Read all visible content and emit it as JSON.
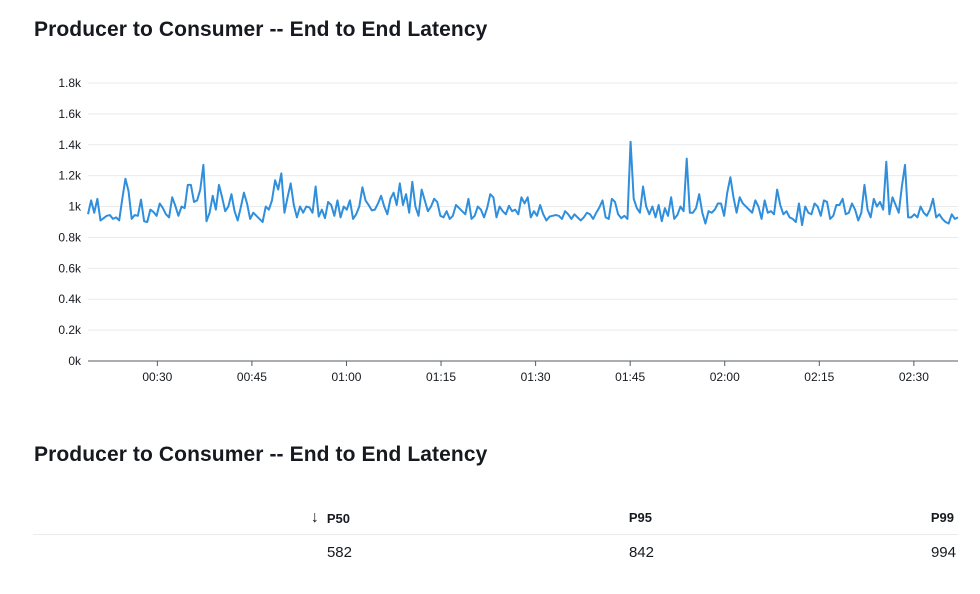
{
  "widgets": [
    {
      "title": "Producer to Consumer -- End to End Latency"
    },
    {
      "title": "Producer to Consumer -- End to End Latency"
    }
  ],
  "colors": {
    "line": "#2f8fdc",
    "grid": "#e9ebed",
    "axis": "#545b64",
    "text": "#16191f"
  },
  "chart_data": {
    "type": "line",
    "title": "Producer to Consumer -- End to End Latency",
    "xlabel": "",
    "ylabel": "",
    "x_tick_labels": [
      "00:30",
      "00:45",
      "01:00",
      "01:15",
      "01:30",
      "01:45",
      "02:00",
      "02:15",
      "02:30"
    ],
    "x_range": [
      "00:19",
      "02:37"
    ],
    "y_tick_labels": [
      "0k",
      "0.2k",
      "0.4k",
      "0.6k",
      "0.8k",
      "1k",
      "1.2k",
      "1.4k",
      "1.6k",
      "1.8k"
    ],
    "ylim": [
      0,
      1800
    ],
    "grid": true,
    "legend": "none",
    "series": [
      {
        "values": [
          950,
          1040,
          960,
          1050,
          910,
          925,
          940,
          945,
          920,
          930,
          910,
          1050,
          1180,
          1100,
          920,
          945,
          940,
          1045,
          905,
          900,
          980,
          965,
          940,
          1020,
          990,
          950,
          930,
          1060,
          1005,
          940,
          1000,
          990,
          1140,
          1140,
          1030,
          1040,
          1110,
          1270,
          905,
          960,
          1070,
          980,
          1140,
          1060,
          970,
          1000,
          1080,
          970,
          910,
          995,
          1090,
          1020,
          920,
          960,
          940,
          920,
          900,
          1000,
          980,
          1040,
          1170,
          1110,
          1215,
          960,
          1060,
          1150,
          1010,
          930,
          1000,
          960,
          1000,
          995,
          960,
          1130,
          935,
          980,
          925,
          1030,
          1010,
          940,
          1040,
          930,
          1000,
          980,
          1040,
          920,
          950,
          1000,
          1125,
          1040,
          1010,
          975,
          980,
          1020,
          1070,
          1000,
          950,
          1050,
          1090,
          1010,
          1150,
          1010,
          1080,
          960,
          1160,
          1000,
          940,
          1110,
          1040,
          970,
          1000,
          1050,
          1030,
          940,
          930,
          970,
          920,
          940,
          1010,
          990,
          970,
          950,
          1050,
          920,
          940,
          1000,
          980,
          930,
          990,
          1080,
          1060,
          930,
          1000,
          970,
          950,
          1005,
          970,
          980,
          950,
          1060,
          1020,
          1060,
          930,
          970,
          940,
          1010,
          950,
          910,
          935,
          940,
          945,
          940,
          920,
          970,
          950,
          920,
          950,
          930,
          910,
          930,
          960,
          950,
          920,
          960,
          995,
          1040,
          930,
          920,
          1050,
          1030,
          950,
          925,
          940,
          920,
          1420,
          1050,
          990,
          960,
          1130,
          1000,
          950,
          1000,
          930,
          1010,
          905,
          990,
          940,
          1060,
          920,
          945,
          1000,
          970,
          1310,
          960,
          960,
          990,
          1080,
          960,
          890,
          970,
          960,
          980,
          1020,
          1020,
          940,
          1090,
          1190,
          1060,
          960,
          1060,
          1020,
          1000,
          980,
          960,
          1040,
          1000,
          920,
          1040,
          960,
          970,
          950,
          1110,
          1010,
          950,
          970,
          930,
          920,
          900,
          1020,
          880,
          1000,
          960,
          950,
          1020,
          1000,
          940,
          1040,
          1030,
          920,
          940,
          1010,
          1010,
          1050,
          950,
          960,
          1020,
          980,
          910,
          960,
          1140,
          980,
          930,
          1050,
          1000,
          1030,
          980,
          1290,
          950,
          1060,
          1010,
          960,
          1130,
          1270,
          930,
          930,
          950,
          930,
          1000,
          960,
          940,
          980,
          1050,
          930,
          950,
          920,
          900,
          890,
          950,
          920,
          930
        ]
      }
    ]
  },
  "table": {
    "sort_icon": "arrow-down-icon",
    "columns": [
      "P50",
      "P95",
      "P99"
    ],
    "rows": [
      [
        "582",
        "842",
        "994"
      ]
    ]
  }
}
